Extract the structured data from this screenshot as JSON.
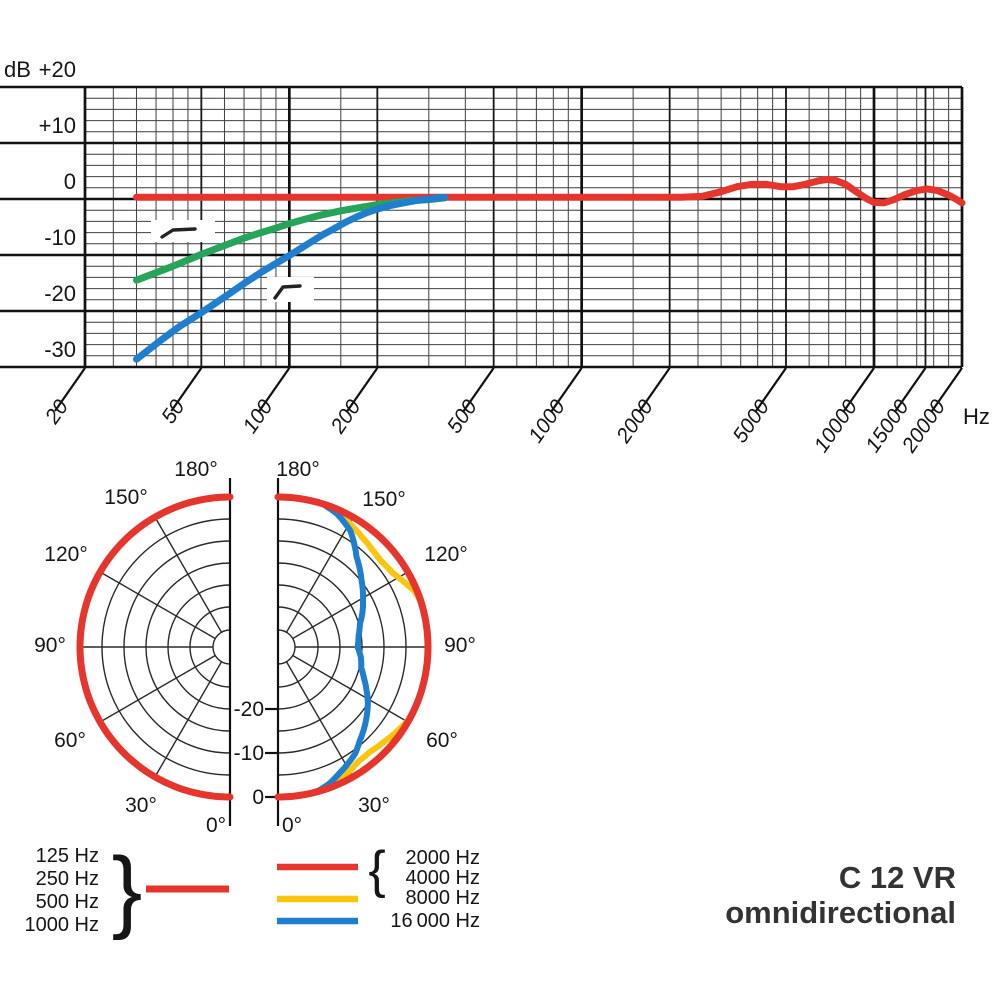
{
  "title": {
    "model": "C 12 VR",
    "pattern": "omnidirectional"
  },
  "axis_units": {
    "y": "dB",
    "x": "Hz"
  },
  "colors": {
    "red": "#e6352c",
    "green": "#26a45a",
    "blue": "#1f7fce",
    "yellow": "#fbc40d"
  },
  "legend": {
    "left": {
      "labels": [
        "125 Hz",
        "250 Hz",
        "500 Hz",
        "1000 Hz"
      ],
      "brace": "}",
      "color": "#e6352c"
    },
    "right": {
      "brace": "{",
      "groups": [
        {
          "labels": [
            "2000 Hz",
            "4000 Hz"
          ],
          "color": "#e6352c"
        },
        {
          "labels": [
            "8000 Hz"
          ],
          "color": "#fbc40d"
        },
        {
          "labels": [
            "16 000 Hz"
          ],
          "color": "#1f7fce"
        }
      ]
    }
  },
  "chart_data": [
    {
      "type": "line",
      "name": "frequency-response",
      "x_scale": "log",
      "xlabel": "Hz",
      "ylabel": "dB",
      "xlim": [
        20,
        20000
      ],
      "ylim": [
        -30,
        20
      ],
      "grid": true,
      "x_tick_values": [
        20,
        50,
        100,
        200,
        500,
        1000,
        2000,
        5000,
        10000,
        15000,
        20000
      ],
      "x_ticks": [
        "20",
        "50",
        "100",
        "200",
        "500",
        "1000",
        "2000",
        "5000",
        "10000",
        "15000",
        "20000"
      ],
      "y_tick_values": [
        20,
        10,
        0,
        -10,
        -20,
        -30
      ],
      "y_ticks": [
        "+20",
        "+10",
        "0",
        "-10",
        "-20",
        "-30"
      ],
      "series": [
        {
          "name": "response-125hz-4khz",
          "color": "#e6352c",
          "stroke_width": 7,
          "points": [
            [
              30,
              0.3
            ],
            [
              2200,
              0.3
            ],
            [
              2600,
              0.5
            ],
            [
              3000,
              1.3
            ],
            [
              3400,
              2.2
            ],
            [
              3800,
              2.6
            ],
            [
              4300,
              2.6
            ],
            [
              4800,
              2.2
            ],
            [
              5300,
              2.2
            ],
            [
              5800,
              2.6
            ],
            [
              6400,
              3.2
            ],
            [
              6900,
              3.5
            ],
            [
              7400,
              3.3
            ],
            [
              8000,
              2.6
            ],
            [
              8700,
              1.3
            ],
            [
              9400,
              0.1
            ],
            [
              10000,
              -0.6
            ],
            [
              10800,
              -0.7
            ],
            [
              11700,
              -0.1
            ],
            [
              12800,
              0.8
            ],
            [
              14000,
              1.5
            ],
            [
              15200,
              1.8
            ],
            [
              16500,
              1.5
            ],
            [
              18000,
              0.7
            ],
            [
              19200,
              -0.1
            ],
            [
              20000,
              -0.7
            ]
          ]
        },
        {
          "name": "bass-cut-6db-oct",
          "color": "#26a45a",
          "stroke_width": 7,
          "points": [
            [
              30,
              -14.5
            ],
            [
              40,
              -12
            ],
            [
              50,
              -9.9
            ],
            [
              60,
              -8.3
            ],
            [
              70,
              -7
            ],
            [
              80,
              -6
            ],
            [
              90,
              -5.2
            ],
            [
              100,
              -4.4
            ],
            [
              115,
              -3.5
            ],
            [
              130,
              -2.8
            ],
            [
              150,
              -2.1
            ],
            [
              175,
              -1.5
            ],
            [
              200,
              -1.0
            ],
            [
              230,
              -0.6
            ],
            [
              260,
              -0.3
            ],
            [
              300,
              -0.1
            ],
            [
              340,
              0.2
            ]
          ]
        },
        {
          "name": "bass-cut-12db-oct",
          "color": "#1f7fce",
          "stroke_width": 7,
          "points": [
            [
              30,
              -28.6
            ],
            [
              36,
              -25.4
            ],
            [
              42,
              -22.8
            ],
            [
              50,
              -20.3
            ],
            [
              60,
              -17.5
            ],
            [
              70,
              -15.1
            ],
            [
              80,
              -13.1
            ],
            [
              90,
              -11.5
            ],
            [
              100,
              -10.1
            ],
            [
              115,
              -8.1
            ],
            [
              130,
              -6.4
            ],
            [
              140,
              -5.5
            ],
            [
              155,
              -4.2
            ],
            [
              170,
              -3.2
            ],
            [
              185,
              -2.4
            ],
            [
              200,
              -1.8
            ],
            [
              220,
              -1.2
            ],
            [
              245,
              -0.7
            ],
            [
              270,
              -0.3
            ],
            [
              300,
              0
            ],
            [
              340,
              0.3
            ]
          ]
        }
      ],
      "annotations": [
        {
          "name": "bass-cut-gentle-icon",
          "type": "filter-symbol"
        },
        {
          "name": "bass-cut-steep-icon",
          "type": "filter-symbol"
        }
      ]
    },
    {
      "type": "polar",
      "name": "polar-pattern",
      "rings_db": [
        0,
        -5,
        -10,
        -15,
        -20,
        -25
      ],
      "db_tick_labels": [
        "0",
        "-10",
        "-20"
      ],
      "db_tick_values": [
        0,
        -10,
        -20
      ],
      "angle_labels": [
        "180°",
        "150°",
        "120°",
        "90°",
        "60°",
        "30°",
        "0°"
      ],
      "halves": {
        "left": {
          "series": [
            {
              "name": "125-1000hz",
              "color": "#e6352c",
              "stroke_width": 7,
              "points_deg_db": [
                [
                  180,
                  0
                ],
                [
                  0,
                  0
                ]
              ]
            }
          ]
        },
        "right": {
          "series": [
            {
              "name": "8000hz",
              "color": "#fbc40d",
              "stroke_width": 6,
              "points_deg_db": [
                [
                  180,
                  0
                ],
                [
                  158,
                  0
                ],
                [
                  150,
                  -1.6
                ],
                [
                  143,
                  -2.6
                ],
                [
                  136,
                  -3.3
                ],
                [
                  130,
                  -3.6
                ],
                [
                  123,
                  -3.1
                ],
                [
                  117,
                  -1.8
                ],
                [
                  112,
                  -0.5
                ],
                [
                  107,
                  0
                ],
                [
                  62,
                  0
                ],
                [
                  55,
                  -0.9
                ],
                [
                  48,
                  -1.8
                ],
                [
                  41,
                  -2.4
                ],
                [
                  35,
                  -2.3
                ],
                [
                  29,
                  -1.4
                ],
                [
                  23,
                  -0.4
                ],
                [
                  18,
                  0
                ],
                [
                  0,
                  0
                ]
              ]
            },
            {
              "name": "16000hz",
              "color": "#1f7fce",
              "stroke_width": 6,
              "points_deg_db": [
                [
                  180,
                  0
                ],
                [
                  163,
                  0
                ],
                [
                  156,
                  -1
                ],
                [
                  148,
                  -3
                ],
                [
                  139,
                  -6.9
                ],
                [
                  129,
                  -9.7
                ],
                [
                  119,
                  -12
                ],
                [
                  112,
                  -13.4
                ],
                [
                  106,
                  -14.7
                ],
                [
                  98,
                  -15.6
                ],
                [
                  90,
                  -16
                ],
                [
                  83,
                  -15.1
                ],
                [
                  76,
                  -14.6
                ],
                [
                  70,
                  -13.3
                ],
                [
                  64,
                  -11.7
                ],
                [
                  58,
                  -10
                ],
                [
                  52,
                  -8.5
                ],
                [
                  46,
                  -7
                ],
                [
                  41,
                  -5.8
                ],
                [
                  36,
                  -4.2
                ],
                [
                  31,
                  -3.2
                ],
                [
                  26,
                  -2.2
                ],
                [
                  21,
                  -1
                ],
                [
                  16,
                  -0.2
                ],
                [
                  11,
                  0
                ],
                [
                  0,
                  0
                ]
              ]
            },
            {
              "name": "2000-4000hz",
              "color": "#e6352c",
              "stroke_width": 7,
              "points_deg_db": [
                [
                  180,
                  0
                ],
                [
                  0,
                  0
                ]
              ]
            }
          ]
        }
      }
    }
  ]
}
